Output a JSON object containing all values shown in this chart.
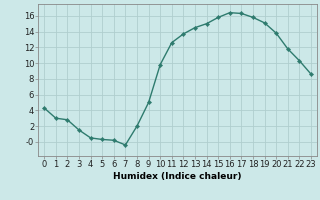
{
  "x": [
    0,
    1,
    2,
    3,
    4,
    5,
    6,
    7,
    8,
    9,
    10,
    11,
    12,
    13,
    14,
    15,
    16,
    17,
    18,
    19,
    20,
    21,
    22,
    23
  ],
  "y": [
    4.3,
    3.0,
    2.8,
    1.5,
    0.5,
    0.3,
    0.2,
    -0.4,
    2.0,
    5.0,
    9.8,
    12.6,
    13.7,
    14.5,
    15.0,
    15.8,
    16.4,
    16.3,
    15.8,
    15.1,
    13.8,
    11.8,
    10.3,
    8.6
  ],
  "line_color": "#2e7b6e",
  "marker": "D",
  "markersize": 2.2,
  "linewidth": 1.0,
  "bg_color": "#cce8e8",
  "grid_color": "#b0cece",
  "xlabel": "Humidex (Indice chaleur)",
  "xlim": [
    -0.5,
    23.5
  ],
  "ylim": [
    -1.8,
    17.5
  ],
  "yticks": [
    0,
    2,
    4,
    6,
    8,
    10,
    12,
    14,
    16
  ],
  "ytick_labels": [
    "-0",
    "2",
    "4",
    "6",
    "8",
    "10",
    "12",
    "14",
    "16"
  ],
  "xticks": [
    0,
    1,
    2,
    3,
    4,
    5,
    6,
    7,
    8,
    9,
    10,
    11,
    12,
    13,
    14,
    15,
    16,
    17,
    18,
    19,
    20,
    21,
    22,
    23
  ],
  "xlabel_fontsize": 6.5,
  "tick_fontsize": 6.0
}
